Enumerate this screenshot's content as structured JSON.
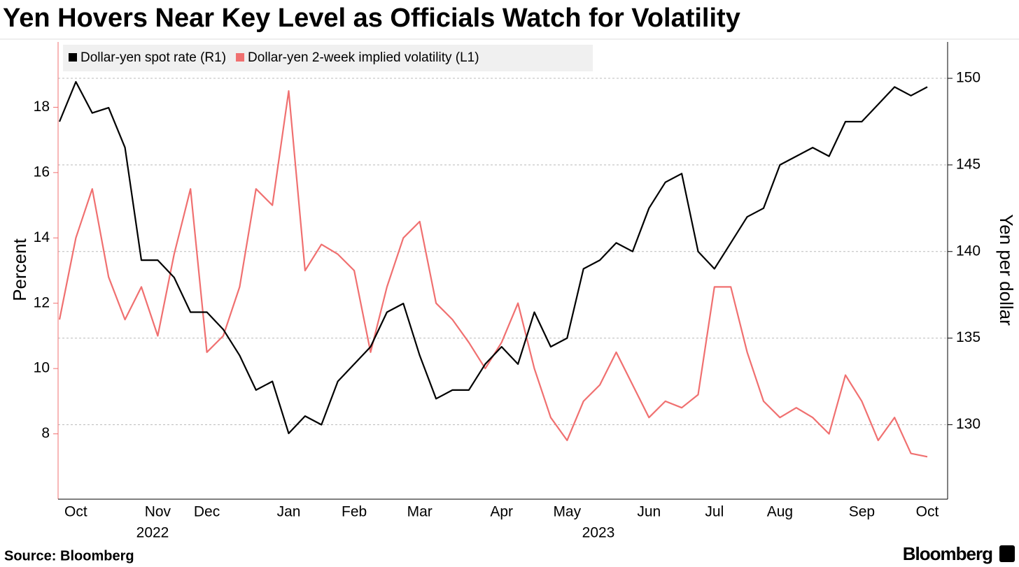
{
  "chart_data": {
    "type": "line",
    "title": "Yen Hovers Near Key Level as Officials Watch for Volatility",
    "source": "Source: Bloomberg",
    "brand": "Bloomberg",
    "ylabel": "Percent",
    "y2label": "Yen per dollar",
    "years": [
      "2022",
      "2023"
    ],
    "categories": [
      null,
      "Oct",
      null,
      null,
      null,
      null,
      "Nov",
      null,
      null,
      "Dec",
      null,
      null,
      null,
      null,
      "Jan",
      null,
      null,
      null,
      "Feb",
      null,
      null,
      null,
      "Mar",
      null,
      null,
      null,
      null,
      "Apr",
      null,
      null,
      null,
      "May",
      null,
      null,
      null,
      null,
      "Jun",
      null,
      null,
      null,
      "Jul",
      null,
      null,
      null,
      "Aug",
      null,
      null,
      null,
      null,
      "Sep",
      null,
      null,
      null,
      "Oct"
    ],
    "series": [
      {
        "name": "Dollar-yen spot rate (R1)",
        "color": "#000000",
        "axis": "y2",
        "values": [
          147.5,
          149.8,
          148.0,
          148.3,
          146.0,
          139.5,
          139.5,
          138.5,
          136.5,
          136.5,
          135.5,
          134.0,
          132.0,
          132.5,
          129.5,
          130.5,
          130.0,
          132.5,
          133.5,
          134.5,
          136.5,
          137.0,
          134.0,
          131.5,
          132.0,
          132.0,
          133.5,
          134.5,
          133.5,
          136.5,
          134.5,
          135.0,
          139.0,
          139.5,
          140.5,
          140.0,
          142.5,
          144.0,
          144.5,
          140.0,
          139.0,
          140.5,
          142.0,
          142.5,
          145.0,
          145.5,
          146.0,
          145.5,
          147.5,
          147.5,
          148.5,
          149.5,
          149.0,
          149.5
        ]
      },
      {
        "name": "Dollar-yen 2-week implied volatility (L1)",
        "color": "#f07070",
        "values": [
          11.5,
          14.0,
          15.5,
          12.8,
          11.5,
          12.5,
          11.0,
          13.5,
          15.5,
          10.5,
          11.0,
          12.5,
          15.5,
          15.0,
          18.5,
          13.0,
          13.8,
          13.5,
          13.0,
          10.5,
          12.5,
          14.0,
          14.5,
          12.0,
          11.5,
          10.8,
          10.0,
          10.8,
          12.0,
          10.0,
          8.5,
          7.8,
          9.0,
          9.5,
          10.5,
          9.5,
          8.5,
          9.0,
          8.8,
          9.2,
          12.5,
          12.5,
          10.5,
          9.0,
          8.5,
          8.8,
          8.5,
          8.0,
          9.8,
          9.0,
          7.8,
          8.5,
          7.4,
          7.3
        ]
      }
    ],
    "ylim": [
      6,
      20
    ],
    "yticks": [
      8,
      10,
      12,
      14,
      16,
      18
    ],
    "y2lim": [
      125.7,
      152.1
    ],
    "y2ticks": [
      130,
      135,
      140,
      145,
      150
    ],
    "grid": true
  }
}
